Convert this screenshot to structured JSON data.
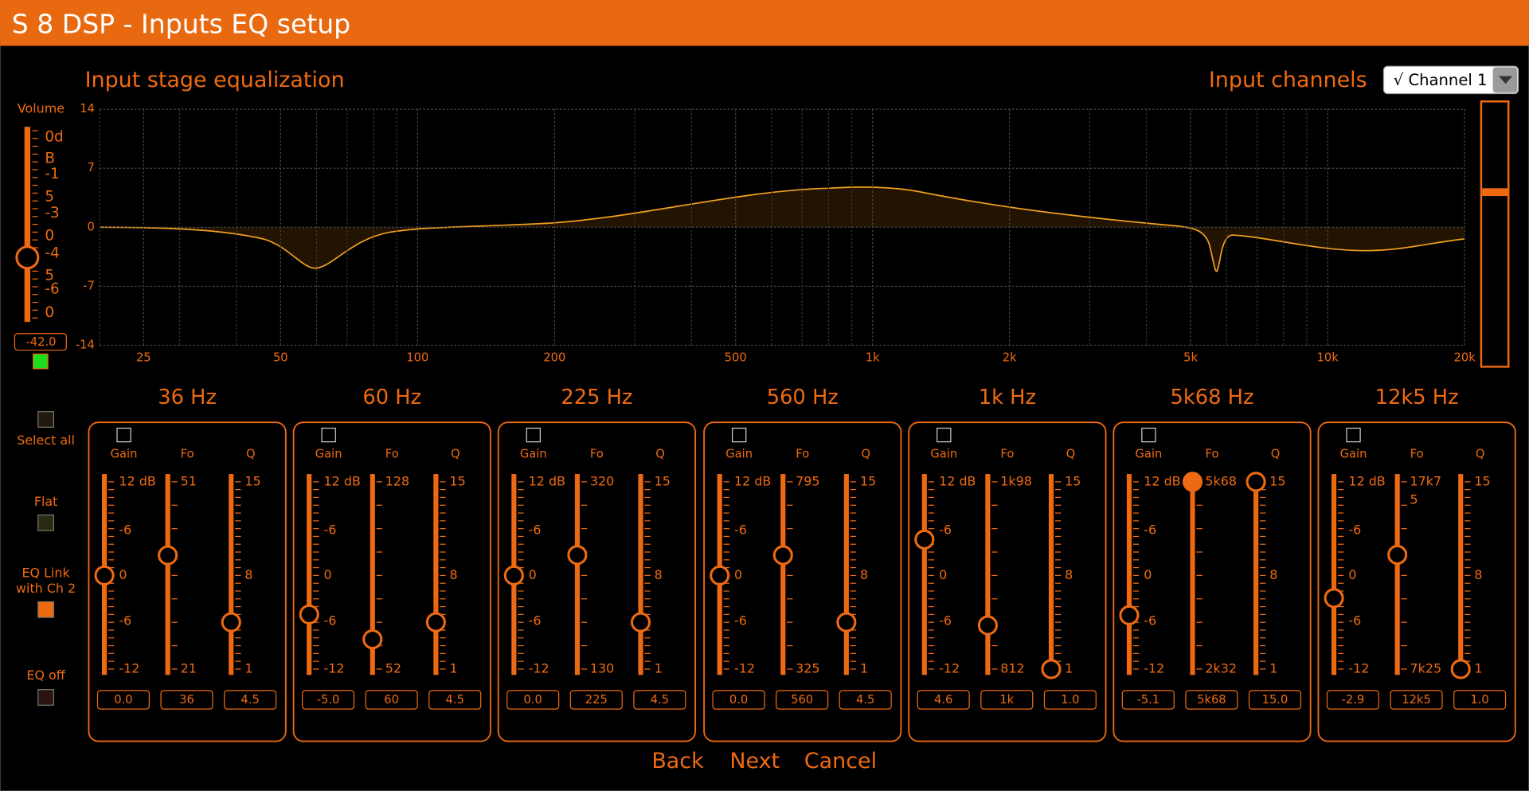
{
  "window": {
    "title": "S 8 DSP - Inputs EQ setup"
  },
  "header": {
    "title": "Input stage equalization",
    "channels_label": "Input channels",
    "channel_select": "√ Channel 1"
  },
  "volume": {
    "label": "Volume",
    "scale": [
      "0d",
      "B",
      "-1",
      "5",
      "-3",
      "0",
      "-4",
      "5",
      "-6",
      "0"
    ],
    "value": "-42.0"
  },
  "graph": {
    "type": "line",
    "xscale": "log",
    "xlim": [
      20,
      20000
    ],
    "ylim": [
      -14,
      14
    ],
    "yticks": [
      14,
      7,
      0,
      -7,
      -14
    ],
    "xticks": [
      {
        "value": 25,
        "label": "25"
      },
      {
        "value": 50,
        "label": "50"
      },
      {
        "value": 100,
        "label": "100"
      },
      {
        "value": 200,
        "label": "200"
      },
      {
        "value": 500,
        "label": "500"
      },
      {
        "value": 1000,
        "label": "1k"
      },
      {
        "value": 2000,
        "label": "2k"
      },
      {
        "value": 5000,
        "label": "5k"
      },
      {
        "value": 10000,
        "label": "10k"
      },
      {
        "value": 20000,
        "label": "20k"
      }
    ],
    "grid": true
  },
  "bands": [
    {
      "title": "36 Hz",
      "labels": [
        "Gain",
        "Fo",
        "Q"
      ],
      "gain_scale": [
        "12 dB",
        "-6",
        "0",
        "-6",
        "-12"
      ],
      "fo_scale": [
        "51",
        "21"
      ],
      "q_scale": [
        "15",
        "8",
        "1"
      ],
      "values": [
        "0.0",
        "36",
        "4.5"
      ]
    },
    {
      "title": "60 Hz",
      "labels": [
        "Gain",
        "Fo",
        "Q"
      ],
      "gain_scale": [
        "12 dB",
        "-6",
        "0",
        "-6",
        "-12"
      ],
      "fo_scale": [
        "128",
        "52"
      ],
      "q_scale": [
        "15",
        "8",
        "1"
      ],
      "values": [
        "-5.0",
        "60",
        "4.5"
      ]
    },
    {
      "title": "225 Hz",
      "labels": [
        "Gain",
        "Fo",
        "Q"
      ],
      "gain_scale": [
        "12 dB",
        "-6",
        "0",
        "-6",
        "-12"
      ],
      "fo_scale": [
        "320",
        "130"
      ],
      "q_scale": [
        "15",
        "8",
        "1"
      ],
      "values": [
        "0.0",
        "225",
        "4.5"
      ]
    },
    {
      "title": "560 Hz",
      "labels": [
        "Gain",
        "Fo",
        "Q"
      ],
      "gain_scale": [
        "12 dB",
        "-6",
        "0",
        "-6",
        "-12"
      ],
      "fo_scale": [
        "795",
        "325"
      ],
      "q_scale": [
        "15",
        "8",
        "1"
      ],
      "values": [
        "0.0",
        "560",
        "4.5"
      ]
    },
    {
      "title": "1k Hz",
      "labels": [
        "Gain",
        "Fo",
        "Q"
      ],
      "gain_scale": [
        "12 dB",
        "-6",
        "0",
        "-6",
        "-12"
      ],
      "fo_scale": [
        "1k98",
        "812"
      ],
      "q_scale": [
        "15",
        "8",
        "1"
      ],
      "values": [
        "4.6",
        "1k",
        "1.0"
      ]
    },
    {
      "title": "5k68 Hz",
      "labels": [
        "Gain",
        "Fo",
        "Q"
      ],
      "gain_scale": [
        "12 dB",
        "-6",
        "0",
        "-6",
        "-12"
      ],
      "fo_scale": [
        "5k68",
        "2k32"
      ],
      "q_scale": [
        "15",
        "8",
        "1"
      ],
      "values": [
        "-5.1",
        "5k68",
        "15.0"
      ]
    },
    {
      "title": "12k5 Hz",
      "labels": [
        "Gain",
        "Fo",
        "Q"
      ],
      "gain_scale": [
        "12 dB",
        "-6",
        "0",
        "-6",
        "-12"
      ],
      "fo_scale": [
        "17k7",
        "5",
        "7k25"
      ],
      "q_scale": [
        "15",
        "8",
        "1"
      ],
      "values": [
        "-2.9",
        "12k5",
        "1.0"
      ]
    }
  ],
  "side": {
    "select_all": "Select all",
    "flat": "Flat",
    "eq_link": [
      "EQ Link",
      "with Ch 2"
    ],
    "eq_off": "EQ off"
  },
  "footer": {
    "back": "Back",
    "next": "Next",
    "cancel": "Cancel"
  }
}
